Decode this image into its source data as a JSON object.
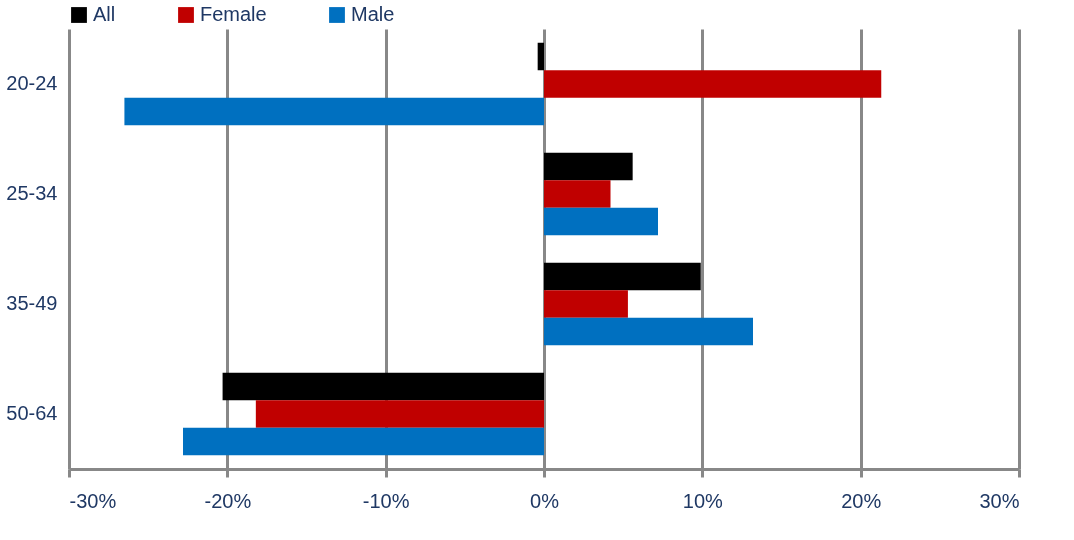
{
  "chart_data": {
    "type": "bar",
    "orientation": "horizontal",
    "categories": [
      "20-24",
      "25-34",
      "35-49",
      "50-64"
    ],
    "series": [
      {
        "name": "All",
        "color": "#000000",
        "values": [
          -0.4,
          5.6,
          9.9,
          -20.3
        ]
      },
      {
        "name": "Female",
        "color": "#c00000",
        "values": [
          21.3,
          4.2,
          5.3,
          -18.2
        ]
      },
      {
        "name": "Male",
        "color": "#0070c0",
        "values": [
          -26.5,
          7.2,
          13.2,
          -22.8
        ]
      }
    ],
    "xlim": [
      -30,
      30
    ],
    "xticks": [
      {
        "value": -30,
        "label": "-30%"
      },
      {
        "value": -20,
        "label": "-20%"
      },
      {
        "value": -10,
        "label": "-10%"
      },
      {
        "value": 0,
        "label": "0%"
      },
      {
        "value": 10,
        "label": "10%"
      },
      {
        "value": 20,
        "label": "20%"
      },
      {
        "value": 30,
        "label": "30%"
      }
    ],
    "grid": "x",
    "legend": "top"
  }
}
